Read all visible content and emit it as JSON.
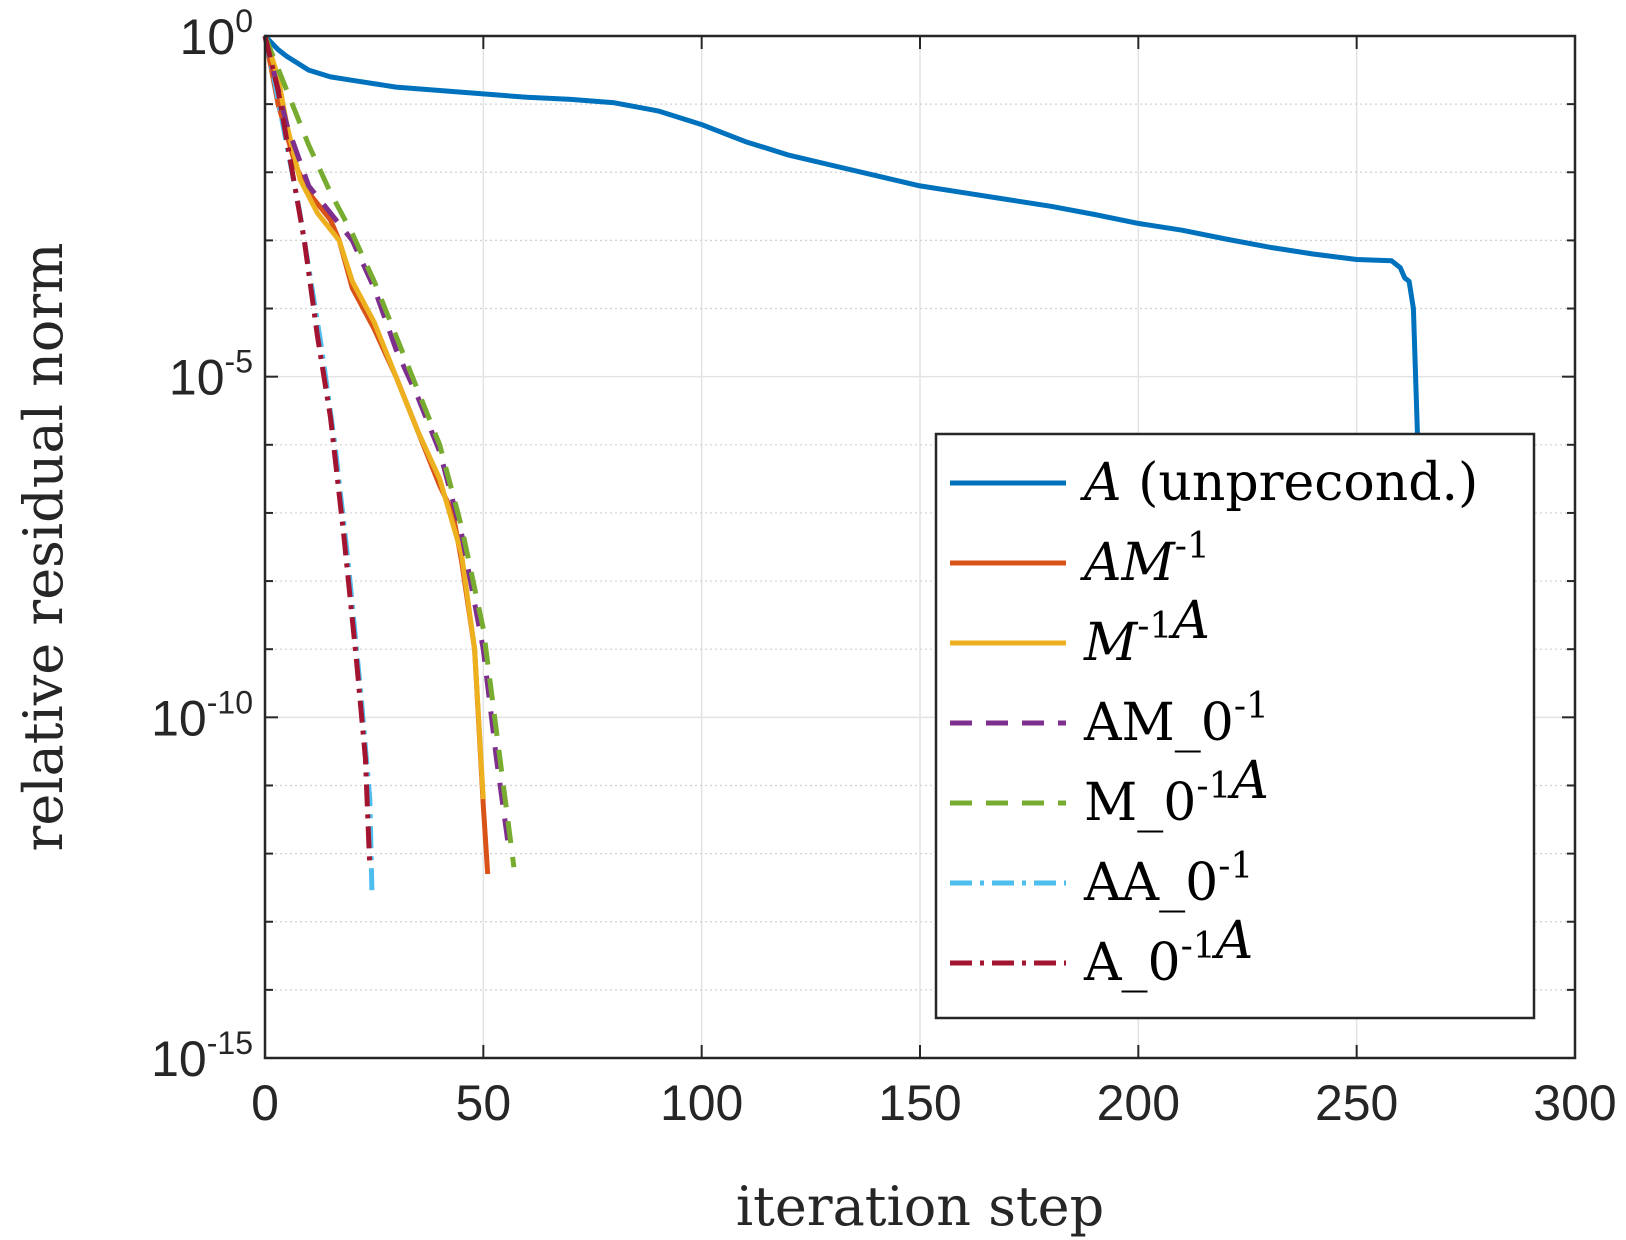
{
  "chart_data": {
    "type": "line",
    "xlabel": "iteration step",
    "ylabel": "relative residual norm",
    "xlim": [
      0,
      300
    ],
    "ylim": [
      1e-15,
      1
    ],
    "yscale": "log",
    "grid": true,
    "legend_position": "lower-right",
    "x_ticks": [
      {
        "value": 0,
        "label": "0"
      },
      {
        "value": 50,
        "label": "50"
      },
      {
        "value": 100,
        "label": "100"
      },
      {
        "value": 150,
        "label": "150"
      },
      {
        "value": 200,
        "label": "200"
      },
      {
        "value": 250,
        "label": "250"
      },
      {
        "value": 300,
        "label": "300"
      }
    ],
    "y_ticks": [
      {
        "exp": 0,
        "base": "10",
        "sup": "0"
      },
      {
        "exp": -5,
        "base": "10",
        "sup": "-5"
      },
      {
        "exp": -10,
        "base": "10",
        "sup": "-10"
      },
      {
        "exp": -15,
        "base": "10",
        "sup": "-15"
      }
    ],
    "series": [
      {
        "name": "A (unprecond.)",
        "color": "#0072BD",
        "dash": "solid",
        "points": [
          [
            0,
            0
          ],
          [
            3,
            -0.2
          ],
          [
            5,
            -0.3
          ],
          [
            10,
            -0.5
          ],
          [
            15,
            -0.6
          ],
          [
            20,
            -0.65
          ],
          [
            30,
            -0.75
          ],
          [
            40,
            -0.8
          ],
          [
            50,
            -0.85
          ],
          [
            60,
            -0.9
          ],
          [
            70,
            -0.93
          ],
          [
            80,
            -0.98
          ],
          [
            90,
            -1.1
          ],
          [
            100,
            -1.3
          ],
          [
            110,
            -1.55
          ],
          [
            120,
            -1.75
          ],
          [
            130,
            -1.9
          ],
          [
            140,
            -2.05
          ],
          [
            150,
            -2.2
          ],
          [
            160,
            -2.3
          ],
          [
            170,
            -2.4
          ],
          [
            180,
            -2.5
          ],
          [
            190,
            -2.62
          ],
          [
            200,
            -2.75
          ],
          [
            210,
            -2.85
          ],
          [
            220,
            -2.98
          ],
          [
            230,
            -3.1
          ],
          [
            240,
            -3.2
          ],
          [
            250,
            -3.28
          ],
          [
            258,
            -3.3
          ],
          [
            260,
            -3.4
          ],
          [
            261,
            -3.55
          ],
          [
            262,
            -3.6
          ],
          [
            263,
            -4.0
          ],
          [
            264,
            -6.0
          ],
          [
            264.5,
            -6.3
          ]
        ]
      },
      {
        "name": "AM^{-1}",
        "color": "#D95319",
        "dash": "solid",
        "points": [
          [
            0,
            0
          ],
          [
            3,
            -1
          ],
          [
            7,
            -1.9
          ],
          [
            10,
            -2.3
          ],
          [
            15,
            -2.7
          ],
          [
            17,
            -3
          ],
          [
            20,
            -3.7
          ],
          [
            25,
            -4.3
          ],
          [
            30,
            -5
          ],
          [
            35,
            -5.8
          ],
          [
            40,
            -6.6
          ],
          [
            43,
            -7
          ],
          [
            45,
            -7.7
          ],
          [
            48,
            -9
          ],
          [
            50,
            -11.3
          ],
          [
            51,
            -12.3
          ]
        ]
      },
      {
        "name": "M^{-1}A",
        "color": "#EDB120",
        "dash": "solid",
        "points": [
          [
            0,
            0
          ],
          [
            3,
            -0.6
          ],
          [
            5,
            -1.3
          ],
          [
            8,
            -2.1
          ],
          [
            12,
            -2.6
          ],
          [
            17,
            -3
          ],
          [
            20,
            -3.6
          ],
          [
            25,
            -4.2
          ],
          [
            30,
            -5
          ],
          [
            35,
            -5.8
          ],
          [
            40,
            -6.5
          ],
          [
            45,
            -7.6
          ],
          [
            48,
            -9
          ],
          [
            50,
            -11.2
          ]
        ]
      },
      {
        "name": "AM_0^{-1}",
        "color": "#7E2F8E",
        "dash": "dashed",
        "points": [
          [
            0,
            0
          ],
          [
            5,
            -1.3
          ],
          [
            10,
            -2.2
          ],
          [
            15,
            -2.6
          ],
          [
            20,
            -3
          ],
          [
            25,
            -3.7
          ],
          [
            30,
            -4.6
          ],
          [
            35,
            -5.3
          ],
          [
            40,
            -6.1
          ],
          [
            45,
            -7.3
          ],
          [
            50,
            -9
          ],
          [
            53,
            -10.6
          ],
          [
            56,
            -12
          ]
        ]
      },
      {
        "name": "M_0^{-1}A",
        "color": "#77AC30",
        "dash": "dashed",
        "points": [
          [
            0,
            0
          ],
          [
            5,
            -0.8
          ],
          [
            10,
            -1.6
          ],
          [
            15,
            -2.3
          ],
          [
            20,
            -2.9
          ],
          [
            25,
            -3.6
          ],
          [
            30,
            -4.4
          ],
          [
            35,
            -5.2
          ],
          [
            40,
            -6
          ],
          [
            45,
            -7.2
          ],
          [
            50,
            -8.7
          ],
          [
            53,
            -10.2
          ],
          [
            57,
            -12.2
          ]
        ]
      },
      {
        "name": "AA_0^{-1}",
        "color": "#4DBEEE",
        "dash": "dashdot",
        "points": [
          [
            0,
            0
          ],
          [
            2,
            -0.6
          ],
          [
            5,
            -1.6
          ],
          [
            8,
            -2.6
          ],
          [
            10,
            -3.4
          ],
          [
            13,
            -4.6
          ],
          [
            16,
            -6
          ],
          [
            19,
            -7.7
          ],
          [
            22,
            -9.7
          ],
          [
            24,
            -11.2
          ],
          [
            24.5,
            -12.6
          ]
        ]
      },
      {
        "name": "A_0^{-1}A",
        "color": "#A2142F",
        "dash": "dashdot",
        "points": [
          [
            0,
            0
          ],
          [
            3,
            -0.8
          ],
          [
            6,
            -1.9
          ],
          [
            9,
            -3
          ],
          [
            12,
            -4.4
          ],
          [
            15,
            -5.6
          ],
          [
            18,
            -7.3
          ],
          [
            21,
            -9.2
          ],
          [
            23,
            -10.6
          ],
          [
            24,
            -12.2
          ]
        ]
      }
    ]
  }
}
